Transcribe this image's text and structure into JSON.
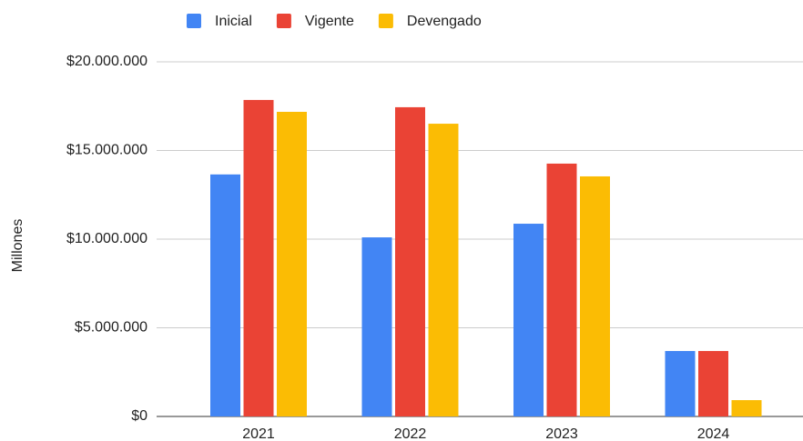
{
  "chart_data": {
    "type": "bar",
    "y_label": "Millones",
    "categories": [
      "2021",
      "2022",
      "2023",
      "2024"
    ],
    "series": [
      {
        "name": "Inicial",
        "color": "#4285f4",
        "values": [
          13650000,
          10100000,
          10870000,
          3690000
        ]
      },
      {
        "name": "Vigente",
        "color": "#ea4335",
        "values": [
          17850000,
          17440000,
          14260000,
          3690000
        ]
      },
      {
        "name": "Devengado",
        "color": "#fbbc04",
        "values": [
          17180000,
          16510000,
          13540000,
          920000
        ]
      }
    ],
    "ylim": [
      0,
      20000000
    ],
    "yticks": [
      {
        "value": 0,
        "label": "$0"
      },
      {
        "value": 5000000,
        "label": "$5.000.000"
      },
      {
        "value": 10000000,
        "label": "$10.000.000"
      },
      {
        "value": 15000000,
        "label": "$15.000.000"
      },
      {
        "value": 20000000,
        "label": "$20.000.000"
      }
    ],
    "grid": true,
    "legend": "top"
  }
}
